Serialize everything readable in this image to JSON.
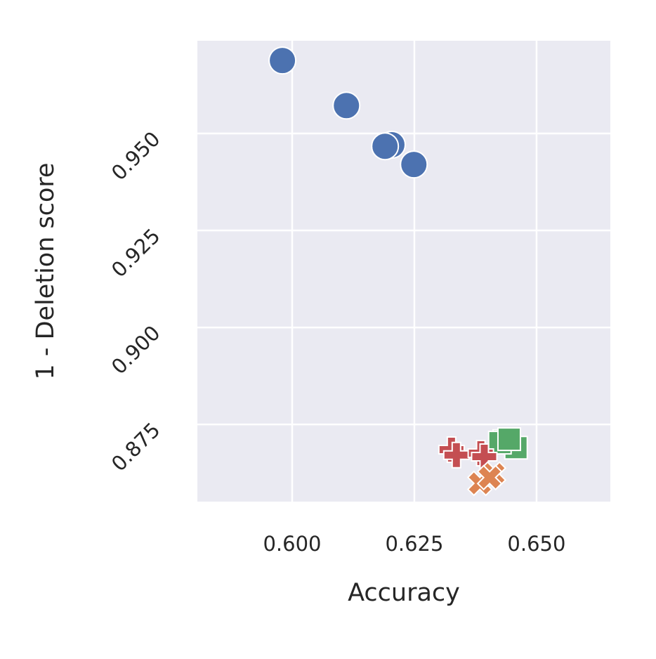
{
  "chart_data": {
    "type": "scatter",
    "xlabel": "Accuracy",
    "ylabel": "1 - Deletion score",
    "xlim": [
      0.5806,
      0.6651
    ],
    "ylim": [
      0.8551,
      0.9739
    ],
    "xticks": [
      {
        "value": 0.6,
        "label": "0.600"
      },
      {
        "value": 0.625,
        "label": "0.625"
      },
      {
        "value": 0.65,
        "label": "0.650"
      }
    ],
    "yticks": [
      {
        "value": 0.875,
        "label": "0.875"
      },
      {
        "value": 0.9,
        "label": "0.900"
      },
      {
        "value": 0.925,
        "label": "0.925"
      },
      {
        "value": 0.95,
        "label": "0.950"
      }
    ],
    "grid": true,
    "series": [
      {
        "color": "#4c72b0",
        "marker": "circle",
        "x": [
          0.598,
          0.6111,
          0.6204,
          0.619,
          0.6249
        ],
        "values": [
          0.9688,
          0.9572,
          0.9471,
          0.9467,
          0.942
        ]
      },
      {
        "color": "#55a868",
        "marker": "square",
        "x": [
          0.6434,
          0.6458,
          0.6425,
          0.6444
        ],
        "values": [
          0.8707,
          0.869,
          0.8703,
          0.8712
        ]
      },
      {
        "color": "#c44e52",
        "marker": "plus",
        "x": [
          0.6326,
          0.6336,
          0.6386,
          0.6393
        ],
        "values": [
          0.8685,
          0.8671,
          0.8676,
          0.8667
        ]
      },
      {
        "color": "#dd8452",
        "marker": "x",
        "x": [
          0.6384,
          0.6412,
          0.6404
        ],
        "values": [
          0.8598,
          0.8622,
          0.8613
        ]
      }
    ]
  }
}
